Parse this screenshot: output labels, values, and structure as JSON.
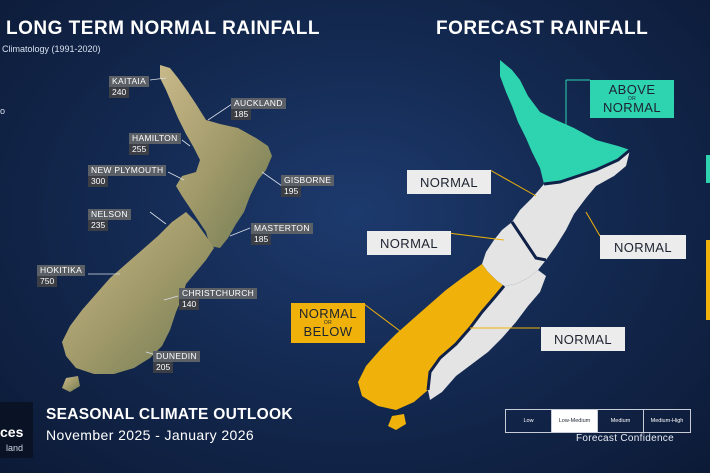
{
  "left_title": "LONG TERM NORMAL RAINFALL",
  "left_subtitle": "Climatology (1991-2020)",
  "left_unit_fragment": "o",
  "right_title": "FORECAST RAINFALL",
  "cities": [
    {
      "name": "KAITAIA",
      "value": "240"
    },
    {
      "name": "AUCKLAND",
      "value": "185"
    },
    {
      "name": "HAMILTON",
      "value": "255"
    },
    {
      "name": "NEW PLYMOUTH",
      "value": "300"
    },
    {
      "name": "GISBORNE",
      "value": "195"
    },
    {
      "name": "NELSON",
      "value": "235"
    },
    {
      "name": "MASTERTON",
      "value": "185"
    },
    {
      "name": "HOKITIKA",
      "value": "750"
    },
    {
      "name": "CHRISTCHURCH",
      "value": "140"
    },
    {
      "name": "DUNEDIN",
      "value": "205"
    }
  ],
  "forecast": {
    "above_top": "ABOVE",
    "above_or": "OR",
    "above_bottom": "NORMAL",
    "normal_1": "NORMAL",
    "normal_2": "NORMAL",
    "normal_3": "NORMAL",
    "normal_4": "NORMAL",
    "below_top": "NORMAL",
    "below_or": "OR",
    "below_bottom": "BELOW"
  },
  "colors": {
    "above_normal": "#2ed3b0",
    "normal": "#ececec",
    "below_normal": "#f0b20a",
    "background": "#142a52"
  },
  "footer": {
    "title": "SEASONAL CLIMATE OUTLOOK",
    "period": "November 2025 - January 2026"
  },
  "logo": {
    "line1": "ces",
    "line2": "land"
  },
  "confidence": {
    "levels": [
      "Low",
      "Low-Medium",
      "Medium",
      "Medium-High"
    ],
    "selected": "Low-Medium",
    "label": "Forecast Confidence"
  }
}
